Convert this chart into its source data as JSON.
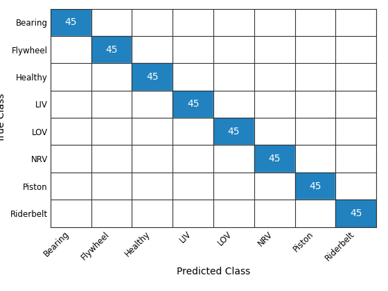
{
  "classes": [
    "Bearing",
    "Flywheel",
    "Healthy",
    "LIV",
    "LOV",
    "NRV",
    "Piston",
    "Riderbelt"
  ],
  "matrix": [
    [
      45,
      0,
      0,
      0,
      0,
      0,
      0,
      0
    ],
    [
      0,
      45,
      0,
      0,
      0,
      0,
      0,
      0
    ],
    [
      0,
      0,
      45,
      0,
      0,
      0,
      0,
      0
    ],
    [
      0,
      0,
      0,
      45,
      0,
      0,
      0,
      0
    ],
    [
      0,
      0,
      0,
      0,
      45,
      0,
      0,
      0
    ],
    [
      0,
      0,
      0,
      0,
      0,
      45,
      0,
      0
    ],
    [
      0,
      0,
      0,
      0,
      0,
      0,
      45,
      0
    ],
    [
      0,
      0,
      0,
      0,
      0,
      0,
      0,
      45
    ]
  ],
  "diag_color": "#2182BF",
  "off_diag_color": "#FFFFFF",
  "text_color_diag": "#FFFFFF",
  "text_color_off": "#000000",
  "xlabel": "Predicted Class",
  "ylabel": "True Class",
  "grid_color": "#333333",
  "font_size_labels": 10,
  "font_size_ticks": 8.5,
  "font_size_values": 10
}
